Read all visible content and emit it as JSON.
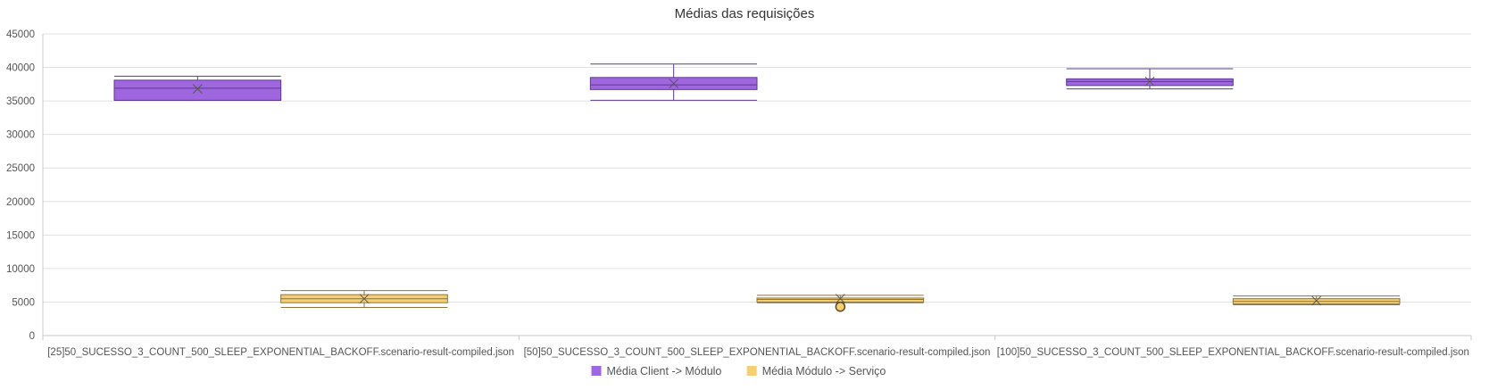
{
  "chart_data": {
    "type": "box",
    "title": "Médias das requisições",
    "ylim": [
      0,
      45000
    ],
    "yticks": [
      "45000",
      "40000",
      "35000",
      "30000",
      "25000",
      "20000",
      "15000",
      "10000",
      "5000",
      "0"
    ],
    "grid": true,
    "legend_position": "bottom",
    "categories": [
      "[25]50_SUCESSO_3_COUNT_500_SLEEP_EXPONENTIAL_BACKOFF.scenario-result-compiled.json",
      "[50]50_SUCESSO_3_COUNT_500_SLEEP_EXPONENTIAL_BACKOFF.scenario-result-compiled.json",
      "[100]50_SUCESSO_3_COUNT_500_SLEEP_EXPONENTIAL_BACKOFF.scenario-result-compiled.json"
    ],
    "series": [
      {
        "name": "Média Client -> Módulo",
        "color": "#a066e0",
        "border": "#5c3a8c",
        "boxes": [
          {
            "min": 35100,
            "q1": 35100,
            "median": 36900,
            "q3": 38100,
            "max": 38700,
            "mean": 36800,
            "outliers": []
          },
          {
            "min": 35100,
            "q1": 36700,
            "median": 37400,
            "q3": 38500,
            "max": 40500,
            "mean": 37600,
            "outliers": []
          },
          {
            "min": 36800,
            "q1": 37300,
            "median": 37900,
            "q3": 38300,
            "max": 39800,
            "mean": 37900,
            "outliers": []
          }
        ]
      },
      {
        "name": "Média Módulo -> Serviço",
        "color": "#f5cf72",
        "border": "#8a7540",
        "boxes": [
          {
            "min": 4200,
            "q1": 4900,
            "median": 5500,
            "q3": 6100,
            "max": 6700,
            "mean": 5500,
            "outliers": []
          },
          {
            "min": 4900,
            "q1": 5000,
            "median": 5400,
            "q3": 5600,
            "max": 6000,
            "mean": 5500,
            "outliers": [
              4300
            ]
          },
          {
            "min": 4600,
            "q1": 4700,
            "median": 5100,
            "q3": 5500,
            "max": 5900,
            "mean": 5200,
            "outliers": []
          }
        ]
      }
    ]
  }
}
